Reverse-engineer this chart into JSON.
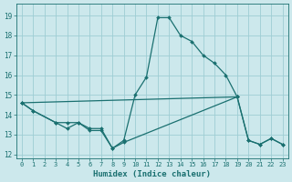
{
  "xlabel": "Humidex (Indice chaleur)",
  "bg_color": "#cce8ec",
  "grid_color": "#9ecdd4",
  "line_color": "#1a7070",
  "xlim": [
    -0.5,
    23.5
  ],
  "ylim": [
    11.8,
    19.6
  ],
  "yticks": [
    12,
    13,
    14,
    15,
    16,
    17,
    18,
    19
  ],
  "xticks": [
    0,
    1,
    2,
    3,
    4,
    5,
    6,
    7,
    8,
    9,
    10,
    11,
    12,
    13,
    14,
    15,
    16,
    17,
    18,
    19,
    20,
    21,
    22,
    23
  ],
  "series": [
    {
      "x": [
        0,
        1,
        3,
        4,
        5,
        6,
        7,
        8,
        9,
        10,
        11,
        12,
        13,
        14,
        15,
        16,
        17,
        18,
        19
      ],
      "y": [
        14.6,
        14.2,
        13.6,
        13.6,
        13.6,
        13.3,
        13.3,
        12.3,
        12.7,
        15.0,
        15.9,
        18.9,
        18.9,
        18.0,
        17.7,
        17.0,
        16.6,
        16.0,
        14.9
      ]
    },
    {
      "x": [
        0,
        1,
        3,
        4,
        5,
        6,
        7,
        8,
        9,
        19,
        20,
        21,
        22,
        23
      ],
      "y": [
        14.6,
        14.2,
        13.6,
        13.3,
        13.6,
        13.2,
        13.2,
        12.3,
        12.6,
        14.9,
        12.7,
        12.5,
        12.8,
        12.5
      ]
    },
    {
      "x": [
        0,
        19,
        20,
        21,
        22,
        23
      ],
      "y": [
        14.6,
        14.9,
        12.7,
        12.5,
        12.8,
        12.5
      ]
    }
  ]
}
